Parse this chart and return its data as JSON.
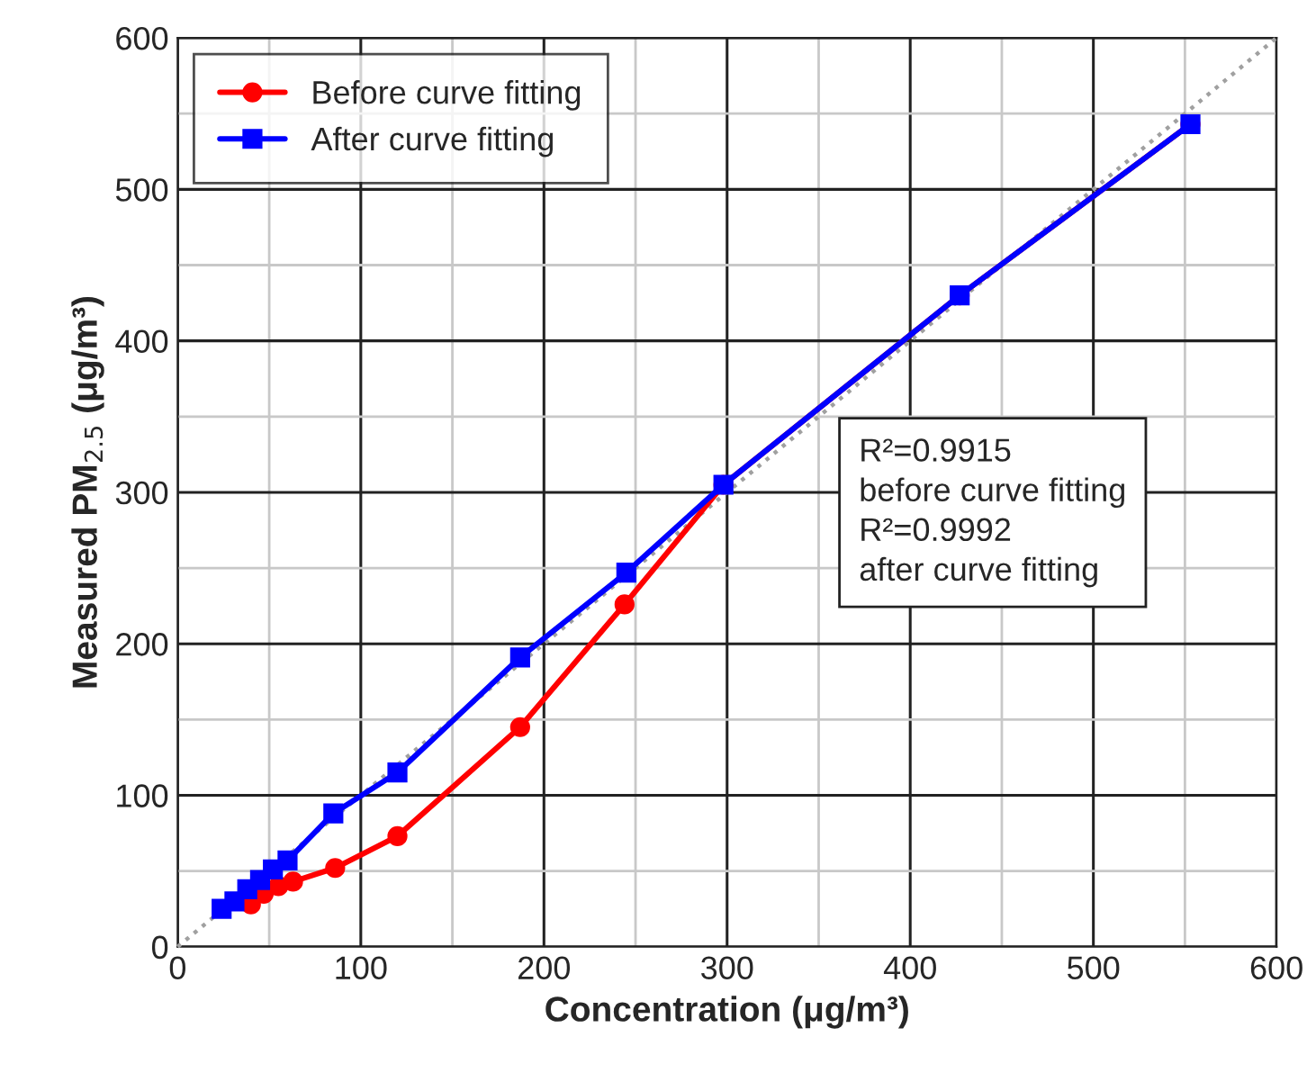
{
  "chart_data": {
    "type": "line",
    "xlabel": "Concentration (μg/m³)",
    "ylabel": "Measured PM$_{2.5}$ (μg/m³)",
    "xlim": [
      0,
      600
    ],
    "ylim": [
      0,
      600
    ],
    "xticks": [
      0,
      100,
      200,
      300,
      400,
      500,
      600
    ],
    "yticks": [
      0,
      100,
      200,
      300,
      400,
      500,
      600
    ],
    "grid": true,
    "legend": "top left",
    "series": [
      {
        "color": "#a0a0a0",
        "line_style": "dotted",
        "marker": "none",
        "x": [
          0,
          600
        ],
        "values": [
          0,
          600
        ]
      },
      {
        "name": "Before curve fitting",
        "color": "#ff0000",
        "marker": "circle",
        "line_style": "solid",
        "x": [
          40,
          47,
          55,
          63,
          86,
          120,
          187,
          244,
          298,
          427,
          553
        ],
        "values": [
          28,
          35,
          40,
          43,
          52,
          73,
          145,
          226,
          305,
          430,
          543
        ]
      },
      {
        "name": "After curve fitting",
        "color": "#0000ff",
        "marker": "square",
        "line_style": "solid",
        "x": [
          24,
          31,
          38,
          45,
          52,
          60,
          85,
          120,
          187,
          245,
          298,
          427,
          553
        ],
        "values": [
          25,
          30,
          38,
          44,
          51,
          57,
          88,
          115,
          191,
          247,
          305,
          430,
          543
        ]
      }
    ],
    "annotations": [
      "R²=0.9915\nbefore curve fitting\nR²=0.9992\nafter curve fitting"
    ]
  }
}
